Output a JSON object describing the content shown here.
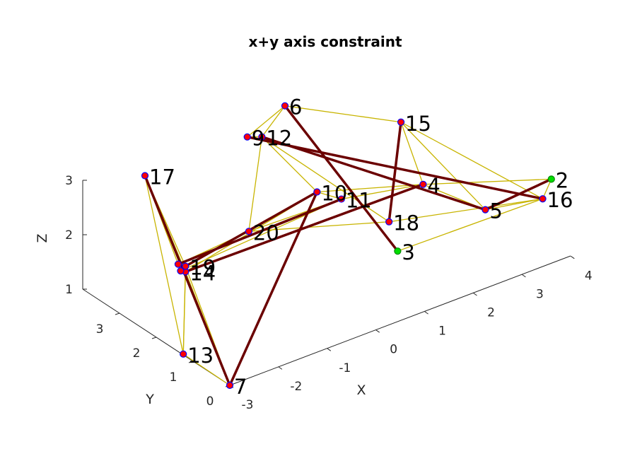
{
  "chart_data": {
    "type": "scatter",
    "subtype": "3d-graph",
    "title": "x+y axis constraint",
    "xlabel": "X",
    "ylabel": "Y",
    "zlabel": "Z",
    "xlim": [
      -3,
      4
    ],
    "ylim": [
      0,
      4
    ],
    "zlim": [
      1,
      3
    ],
    "x_ticks": [
      "-3",
      "-2",
      "-1",
      "0",
      "1",
      "2",
      "3",
      "4"
    ],
    "y_ticks": [
      "0",
      "1",
      "2",
      "3"
    ],
    "z_ticks": [
      "1",
      "2",
      "3"
    ],
    "colors": {
      "node_fill": "#ff0000",
      "node_edge": "#0000ff",
      "fixed_node_fill": "#00dd00",
      "light_edge": "#c8b400",
      "heavy_edge": "#6b0000",
      "axis": "#262626"
    },
    "nodes": [
      {
        "id": "2",
        "label": "2",
        "x": 3.6,
        "y": 0.0,
        "z": 2.55,
        "fixed": true
      },
      {
        "id": "3",
        "label": "3",
        "x": 1.2,
        "y": 1.0,
        "z": 1.6,
        "fixed": true
      },
      {
        "id": "4",
        "label": "4",
        "x": 2.1,
        "y": 1.5,
        "z": 2.3,
        "fixed": false
      },
      {
        "id": "5",
        "label": "5",
        "x": 3.0,
        "y": 1.0,
        "z": 1.75,
        "fixed": false
      },
      {
        "id": "6",
        "label": "6",
        "x": 1.0,
        "y": 3.8,
        "z": 3.1,
        "fixed": false
      },
      {
        "id": "7",
        "label": "7",
        "x": -3.0,
        "y": 0.0,
        "z": 1.0,
        "fixed": false
      },
      {
        "id": "9",
        "label": "9",
        "x": 0.0,
        "y": 3.5,
        "z": 3.0,
        "fixed": false
      },
      {
        "id": "10",
        "label": "10",
        "x": 0.3,
        "y": 2.0,
        "z": 2.55,
        "fixed": false
      },
      {
        "id": "11",
        "label": "11",
        "x": 0.8,
        "y": 2.0,
        "z": 2.25,
        "fixed": false
      },
      {
        "id": "12",
        "label": "12",
        "x": 0.3,
        "y": 3.5,
        "z": 2.9,
        "fixed": false
      },
      {
        "id": "13",
        "label": "13",
        "x": -3.2,
        "y": 1.0,
        "z": 1.2,
        "fixed": false
      },
      {
        "id": "14",
        "label": "14",
        "x": -2.4,
        "y": 2.0,
        "z": 2.0,
        "fixed": false
      },
      {
        "id": "15",
        "label": "15",
        "x": 2.4,
        "y": 2.5,
        "z": 2.9,
        "fixed": false
      },
      {
        "id": "16",
        "label": "16",
        "x": 3.8,
        "y": 0.5,
        "z": 1.9,
        "fixed": false
      },
      {
        "id": "17",
        "label": "17",
        "x": -2.1,
        "y": 3.5,
        "z": 3.0,
        "fixed": false
      },
      {
        "id": "18",
        "label": "18",
        "x": 1.4,
        "y": 1.5,
        "z": 1.85,
        "fixed": false
      },
      {
        "id": "19",
        "label": "19",
        "x": -2.4,
        "y": 2.0,
        "z": 2.1,
        "fixed": false
      },
      {
        "id": "20",
        "label": "20",
        "x": -1.1,
        "y": 2.0,
        "z": 2.3,
        "fixed": false
      },
      {
        "id": "8",
        "label": "",
        "x": -2.5,
        "y": 2.0,
        "z": 2.05,
        "fixed": false
      },
      {
        "id": "1",
        "label": "",
        "x": -2.4,
        "y": 2.2,
        "z": 2.05,
        "fixed": false
      }
    ],
    "heavy_edges": [
      [
        "17",
        "7"
      ],
      [
        "7",
        "10"
      ],
      [
        "6",
        "3"
      ],
      [
        "9",
        "16"
      ],
      [
        "12",
        "5"
      ],
      [
        "14",
        "4"
      ],
      [
        "19",
        "10"
      ],
      [
        "1",
        "11"
      ],
      [
        "15",
        "18"
      ],
      [
        "5",
        "2"
      ]
    ],
    "light_edges": [
      [
        "17",
        "13"
      ],
      [
        "17",
        "14"
      ],
      [
        "17",
        "19"
      ],
      [
        "17",
        "8"
      ],
      [
        "13",
        "7"
      ],
      [
        "13",
        "14"
      ],
      [
        "13",
        "19"
      ],
      [
        "14",
        "7"
      ],
      [
        "19",
        "7"
      ],
      [
        "19",
        "20"
      ],
      [
        "20",
        "10"
      ],
      [
        "20",
        "11"
      ],
      [
        "20",
        "18"
      ],
      [
        "9",
        "6"
      ],
      [
        "9",
        "12"
      ],
      [
        "6",
        "12"
      ],
      [
        "6",
        "15"
      ],
      [
        "12",
        "10"
      ],
      [
        "12",
        "18"
      ],
      [
        "12",
        "20"
      ],
      [
        "10",
        "4"
      ],
      [
        "10",
        "11"
      ],
      [
        "11",
        "4"
      ],
      [
        "15",
        "4"
      ],
      [
        "15",
        "5"
      ],
      [
        "15",
        "16"
      ],
      [
        "4",
        "2"
      ],
      [
        "4",
        "5"
      ],
      [
        "18",
        "16"
      ],
      [
        "3",
        "16"
      ],
      [
        "2",
        "16"
      ],
      [
        "5",
        "16"
      ],
      [
        "14",
        "10"
      ],
      [
        "1",
        "20"
      ],
      [
        "8",
        "11"
      ]
    ]
  }
}
